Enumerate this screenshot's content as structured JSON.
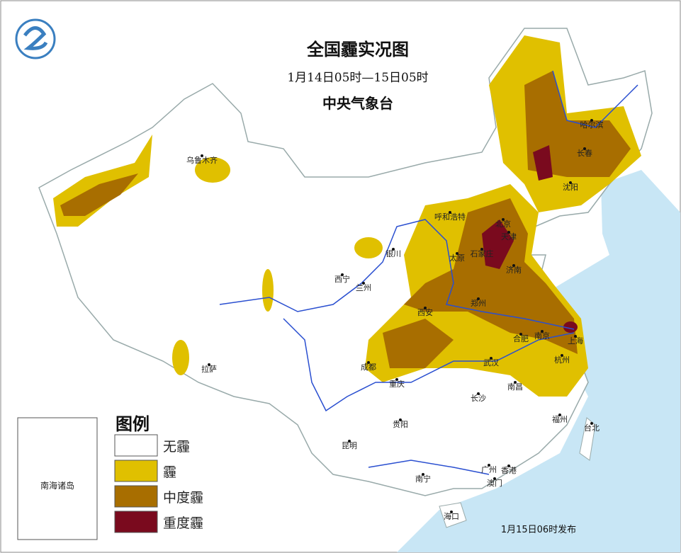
{
  "header": {
    "title": "全国霾实况图",
    "period": "1月14日05时—15日05时",
    "issuer": "中央气象台"
  },
  "legend": {
    "title": "图例",
    "items": [
      "无霾",
      "霾",
      "中度霾",
      "重度霾"
    ]
  },
  "cities": [
    "乌鲁木齐",
    "哈尔滨",
    "长春",
    "沈阳",
    "呼和浩特",
    "北京",
    "天津",
    "石家庄",
    "太原",
    "济南",
    "银川",
    "西宁",
    "兰州",
    "郑州",
    "西安",
    "合肥",
    "南京",
    "上海",
    "成都",
    "武汉",
    "杭州",
    "拉萨",
    "重庆",
    "南昌",
    "长沙",
    "福州",
    "贵阳",
    "台北",
    "昆明",
    "广州",
    "香港",
    "南宁",
    "澳门",
    "海口"
  ],
  "inset": {
    "label": "南海诸岛"
  },
  "footer": {
    "release": "1月15日06时发布"
  }
}
